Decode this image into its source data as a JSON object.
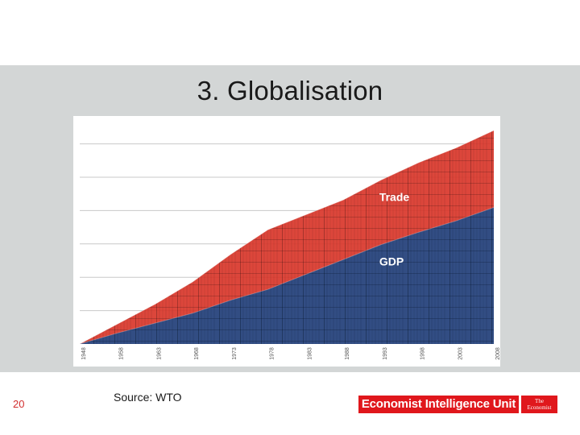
{
  "slide": {
    "title": "3. Globalisation",
    "page_number": "20",
    "source": "Source: WTO"
  },
  "logos": {
    "eiu": "Economist Intelligence Unit",
    "economist_line1": "The",
    "economist_line2": "Economist"
  },
  "colors": {
    "trade": "#d9362a",
    "gdp": "#1f4e8c",
    "band": "#d3d6d6",
    "brand_red": "#e0171c"
  },
  "chart_data": {
    "type": "area",
    "x": [
      1948,
      1958,
      1963,
      1968,
      1973,
      1978,
      1983,
      1988,
      1993,
      1998,
      2003,
      2008
    ],
    "categories": [
      "1948",
      "1958",
      "1963",
      "1968",
      "1973",
      "1978",
      "1983",
      "1988",
      "1993",
      "1998",
      "2003",
      "2008"
    ],
    "series": [
      {
        "name": "Trade",
        "values": [
          0,
          40,
          80,
          125,
          180,
          230,
          260,
          290,
          330,
          365,
          395,
          430
        ]
      },
      {
        "name": "GDP",
        "values": [
          0,
          22,
          42,
          62,
          88,
          110,
          140,
          170,
          200,
          225,
          248,
          275
        ]
      }
    ],
    "ylim": [
      0,
      430
    ],
    "grid": true,
    "title": "",
    "xlabel": "",
    "ylabel": ""
  }
}
